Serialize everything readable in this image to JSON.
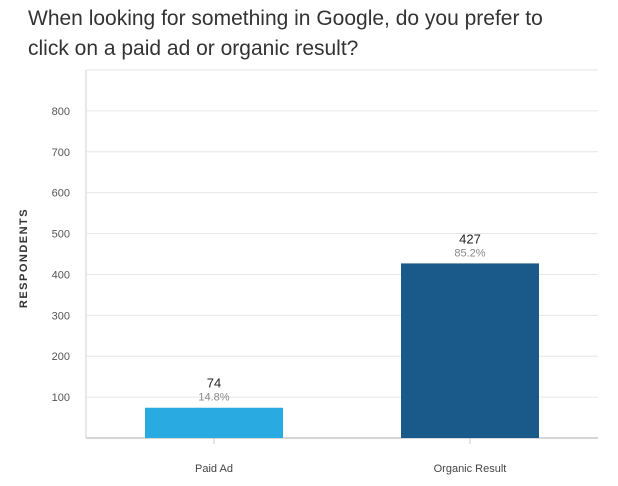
{
  "chart_data": {
    "type": "bar",
    "title": "When looking for something in Google, do you prefer to click on a paid ad or organic result?",
    "xlabel": "",
    "ylabel": "RESPONDENTS",
    "categories": [
      "Paid Ad",
      "Organic Result"
    ],
    "values": [
      74,
      427
    ],
    "percent_labels": [
      "14.8%",
      "85.2%"
    ],
    "colors": [
      "#29abe2",
      "#1a5a8a"
    ],
    "ylim": [
      0,
      900
    ],
    "yticks": [
      100,
      200,
      300,
      400,
      500,
      600,
      700,
      800
    ],
    "grid": true
  }
}
